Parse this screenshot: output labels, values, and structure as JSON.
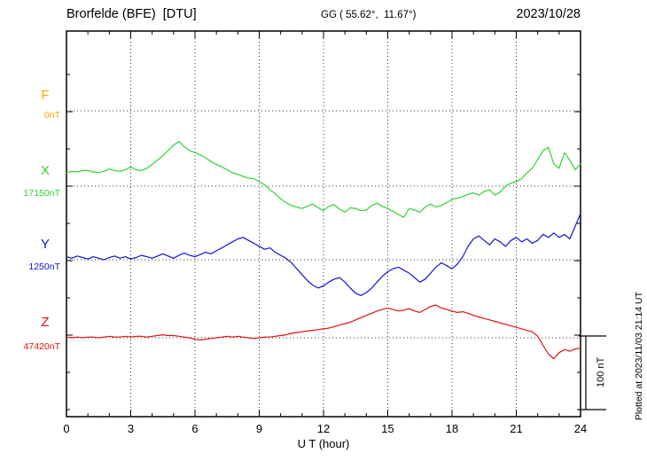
{
  "header": {
    "title": "Brorfelde (BFE)  [DTU]",
    "gg_coords": "GG ( 55.62°,  11.67°)",
    "date": "2023/10/28"
  },
  "side_note": "Plotted at 2023/11/03 21:14 UT",
  "scale_bar_label": "100 nT",
  "chart_data": {
    "type": "line",
    "title": "Brorfelde (BFE) [DTU] magnetogram for 2023/10/28",
    "xlabel": "U T (hour)",
    "x_range": [
      0,
      24
    ],
    "x_ticks": [
      0,
      3,
      6,
      9,
      12,
      15,
      18,
      21,
      24
    ],
    "x_step_hours": 0.25,
    "y_scale_nT_per_division": 100,
    "grid": "dotted vertical lines every 3 h; dotted horizontal baseline per component",
    "legend_position": "left margin component labels",
    "series": [
      {
        "name": "F",
        "color": "#ffa500",
        "baseline_label": "0nT",
        "baseline_nT": 0,
        "unit": "nT",
        "values_nT_offset": []
      },
      {
        "name": "X",
        "color": "#2fd32f",
        "baseline_label": "17150nT",
        "baseline_nT": 17150,
        "unit": "nT",
        "values_nT_offset": [
          18,
          20,
          19,
          21,
          21,
          19,
          18,
          20,
          23,
          21,
          20,
          22,
          26,
          22,
          21,
          24,
          29,
          35,
          41,
          48,
          55,
          60,
          53,
          48,
          45,
          42,
          38,
          33,
          29,
          26,
          22,
          18,
          16,
          13,
          11,
          10,
          6,
          2,
          -5,
          -10,
          -17,
          -22,
          -26,
          -28,
          -30,
          -27,
          -24,
          -29,
          -33,
          -27,
          -25,
          -31,
          -35,
          -29,
          -30,
          -33,
          -32,
          -26,
          -23,
          -27,
          -30,
          -34,
          -38,
          -42,
          -30,
          -32,
          -35,
          -28,
          -24,
          -28,
          -26,
          -22,
          -18,
          -16,
          -14,
          -11,
          -9,
          -12,
          -7,
          -5,
          -12,
          -8,
          0,
          4,
          6,
          10,
          18,
          24,
          36,
          48,
          52,
          30,
          24,
          45,
          35,
          22,
          30
        ]
      },
      {
        "name": "Y",
        "color": "#1212d6",
        "baseline_label": "1250nT",
        "baseline_nT": 1250,
        "unit": "nT",
        "values_nT_offset": [
          4,
          2,
          5,
          3,
          1,
          4,
          2,
          0,
          3,
          5,
          2,
          4,
          1,
          3,
          6,
          4,
          2,
          5,
          8,
          5,
          2,
          6,
          9,
          6,
          4,
          7,
          10,
          8,
          12,
          16,
          20,
          24,
          28,
          30,
          26,
          22,
          18,
          14,
          16,
          10,
          6,
          2,
          -4,
          -12,
          -20,
          -28,
          -34,
          -38,
          -35,
          -30,
          -26,
          -24,
          -30,
          -38,
          -45,
          -48,
          -44,
          -38,
          -30,
          -22,
          -16,
          -12,
          -10,
          -14,
          -18,
          -24,
          -30,
          -26,
          -18,
          -10,
          -4,
          -8,
          -12,
          -6,
          4,
          18,
          28,
          32,
          26,
          20,
          28,
          24,
          18,
          26,
          30,
          24,
          28,
          22,
          26,
          34,
          30,
          36,
          30,
          34,
          28,
          45,
          62
        ]
      },
      {
        "name": "Z",
        "color": "#e01212",
        "baseline_label": "47420nT",
        "baseline_nT": 47420,
        "unit": "nT",
        "values_nT_offset": [
          1,
          0,
          1,
          0,
          1,
          1,
          0,
          1,
          2,
          1,
          1,
          2,
          1,
          2,
          2,
          1,
          2,
          3,
          4,
          3,
          3,
          2,
          1,
          0,
          -2,
          -3,
          -2,
          -1,
          0,
          1,
          2,
          1,
          2,
          1,
          0,
          -1,
          0,
          1,
          1,
          2,
          3,
          4,
          6,
          7,
          8,
          9,
          10,
          11,
          12,
          13,
          15,
          17,
          19,
          21,
          24,
          27,
          30,
          33,
          36,
          38,
          40,
          38,
          36,
          37,
          39,
          36,
          34,
          38,
          42,
          44,
          40,
          38,
          36,
          34,
          35,
          33,
          30,
          28,
          26,
          24,
          22,
          20,
          18,
          16,
          14,
          12,
          10,
          8,
          2,
          -10,
          -22,
          -28,
          -20,
          -16,
          -18,
          -15,
          -14
        ]
      }
    ]
  }
}
